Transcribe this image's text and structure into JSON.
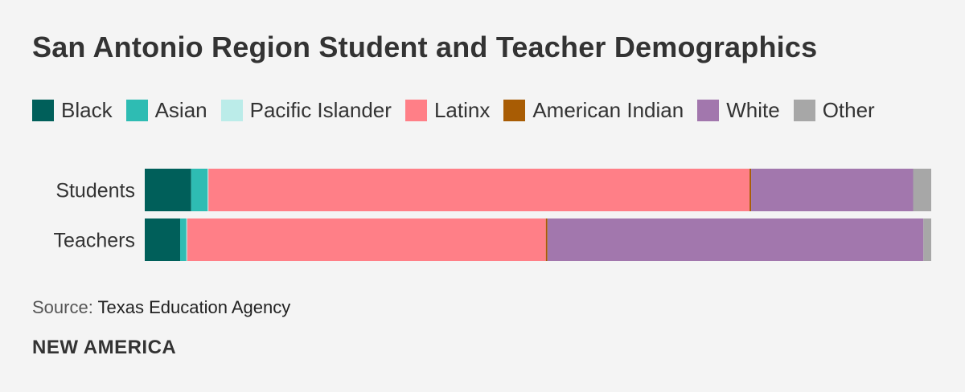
{
  "header": {
    "title": "San Antonio Region Student and Teacher Demographics"
  },
  "chart_data": {
    "type": "bar",
    "orientation": "horizontal",
    "stacked": "percent",
    "categories": [
      "Students",
      "Teachers"
    ],
    "series": [
      {
        "name": "Black",
        "color": "#005f5a",
        "values": [
          5.9,
          4.5
        ]
      },
      {
        "name": "Asian",
        "color": "#2ebcb3",
        "values": [
          2.1,
          0.8
        ]
      },
      {
        "name": "Pacific Islander",
        "color": "#bbece9",
        "values": [
          0.1,
          0.1
        ]
      },
      {
        "name": "Latinx",
        "color": "#ff7f87",
        "values": [
          68.8,
          45.6
        ]
      },
      {
        "name": "American Indian",
        "color": "#a85c04",
        "values": [
          0.2,
          0.2
        ]
      },
      {
        "name": "White",
        "color": "#a277ad",
        "values": [
          20.6,
          47.8
        ]
      },
      {
        "name": "Other",
        "color": "#a7a7a7",
        "values": [
          2.3,
          1.0
        ]
      }
    ],
    "xlim": [
      0,
      100
    ],
    "grid": false,
    "legend": "top"
  },
  "footer": {
    "source_label": "Source:",
    "source_value": "Texas Education Agency",
    "brand": "NEW AMERICA"
  }
}
